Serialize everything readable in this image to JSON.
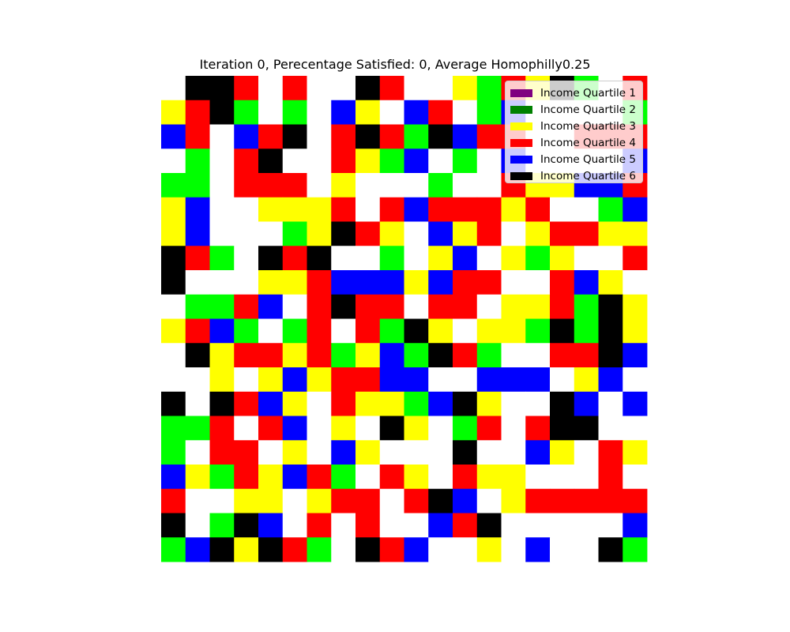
{
  "chart_data": {
    "type": "heatmap",
    "title": "Iteration 0, Perecentage Satisfied: 0, Average Homophilly0.25",
    "xlabel": "",
    "ylabel": "",
    "grid_size": [
      20,
      20
    ],
    "axes_visible": false,
    "legend_position": "top-right",
    "legend": [
      {
        "key": "1",
        "label": "Income Quartile 1",
        "color": "#800080"
      },
      {
        "key": "2",
        "label": "Income Quartile 2",
        "color": "#008000"
      },
      {
        "key": "3",
        "label": "Income Quartile 3",
        "color": "#ffff00"
      },
      {
        "key": "4",
        "label": "Income Quartile 4",
        "color": "#ff0000"
      },
      {
        "key": "5",
        "label": "Income Quartile 5",
        "color": "#0000ff"
      },
      {
        "key": "6",
        "label": "Income Quartile 6",
        "color": "#000000"
      }
    ],
    "cell_colors": {
      "W": "#ffffff",
      "K": "#000000",
      "R": "#ff0000",
      "G": "#00ff00",
      "Y": "#ffff00",
      "B": "#0000ff"
    },
    "rows": [
      "WKKRWRWWKRWWYGRYKGWR",
      "YRKGWGWBYWBRWGBWWWWG",
      "BRWBRKWRKRGKBRRWWRRR",
      "WGWRKWWRYGBWGWBWWWWB",
      "GGWRRRWYWWWGWWRYYBBR",
      "YBWWYYYRWRBRRRYRWWGB",
      "YBWWWGYKRYWBYRWYRRYY",
      "KRGWKRKWWGWYBWYGYWWR",
      "KWWWYYRBBBYBRRWWRBYW",
      "WGGRBWRKRRWRRWYYRGKY",
      "YRBGWGRWRGKYWYYGKGKY",
      "WKYRRYRGYBGKRGWWRRKB",
      "WWYWYBYRRBBWWBBBWYBW",
      "KWKRBYWRYYGBKYWWKBWB",
      "GGRWRBWYWKYWGRWRKKWW",
      "GWRRWYWBYWWWKWWBYWRY",
      "BYGRYBRGWRYWRYYWWWRW",
      "RWWYYWYRRWRKBWYRRRRR",
      "KWGKBWRWRWWBRKWWWWWB",
      "GBKYKRGWKRBWWYWBWWKG"
    ]
  }
}
